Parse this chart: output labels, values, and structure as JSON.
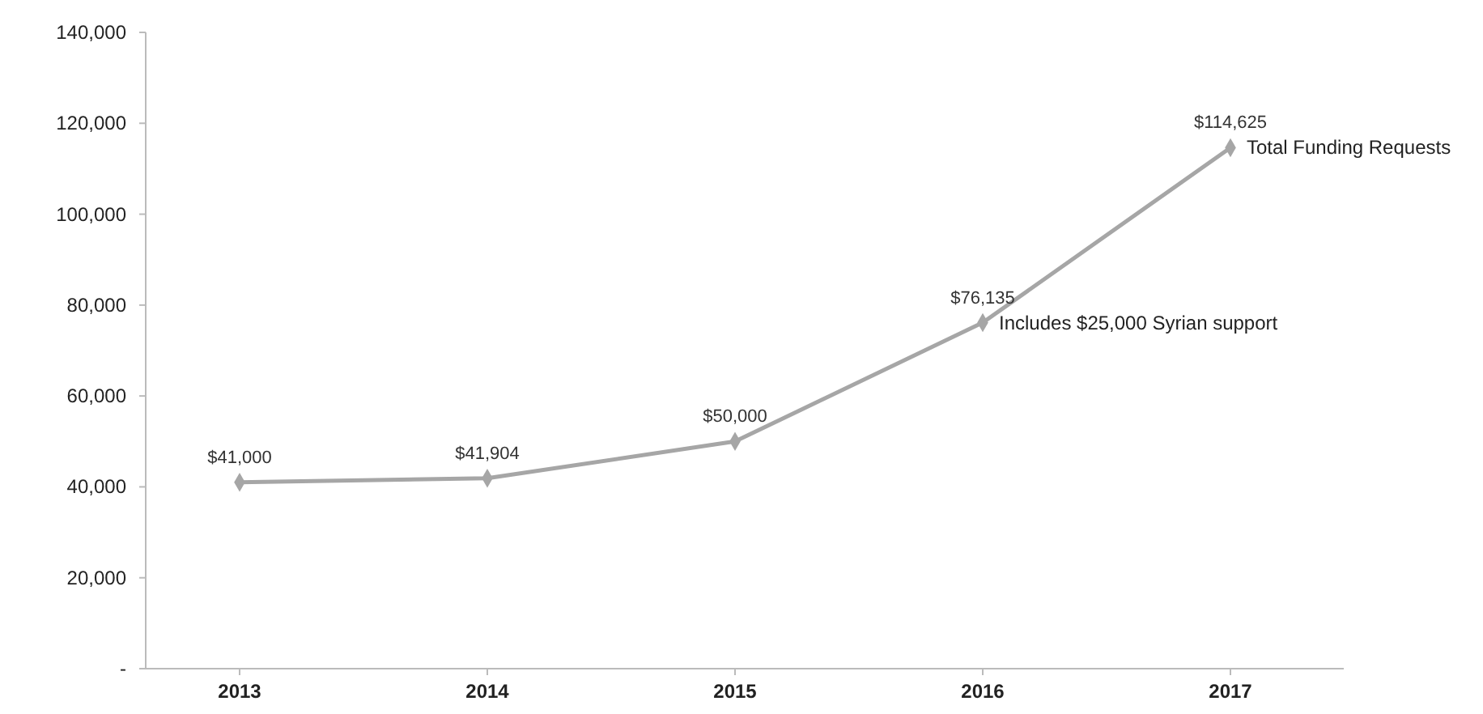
{
  "chart_data": {
    "type": "line",
    "categories": [
      "2013",
      "2014",
      "2015",
      "2016",
      "2017"
    ],
    "series": [
      {
        "name": "Total Funding Requests",
        "color": "#a6a6a6",
        "values": [
          41000,
          41904,
          50000,
          76135,
          114625
        ],
        "value_labels": [
          "$41,000",
          "$41,904",
          "$50,000",
          "$76,135",
          "$114,625"
        ]
      }
    ],
    "ylim": [
      0,
      140000
    ],
    "yticks": [
      {
        "value": 0,
        "label": "-"
      },
      {
        "value": 20000,
        "label": "20,000"
      },
      {
        "value": 40000,
        "label": "40,000"
      },
      {
        "value": 60000,
        "label": "60,000"
      },
      {
        "value": 80000,
        "label": "80,000"
      },
      {
        "value": 100000,
        "label": "100,000"
      },
      {
        "value": 120000,
        "label": "120,000"
      },
      {
        "value": 140000,
        "label": "140,000"
      }
    ],
    "annotations": [
      {
        "text": "Includes $25,000 Syrian support",
        "x": "2016",
        "y": 76135
      }
    ],
    "marker": "diamond",
    "line_style": "solid",
    "grid": false,
    "legend": false
  }
}
